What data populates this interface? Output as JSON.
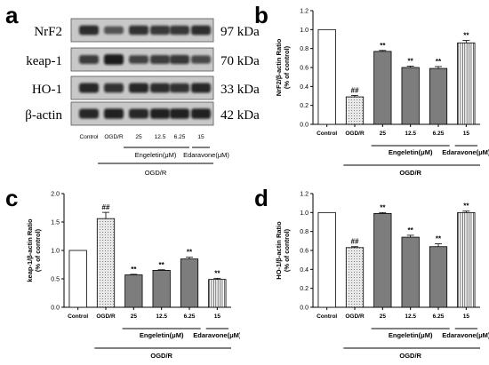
{
  "panel_letters": [
    "a",
    "b",
    "c",
    "d"
  ],
  "blot": {
    "proteins": [
      {
        "name": "NrF2",
        "size": "97 kDa"
      },
      {
        "name": "keap-1",
        "size": "70 kDa"
      },
      {
        "name": "HO-1",
        "size": "33 kDa"
      },
      {
        "name": "β-actin",
        "size": "42 kDa"
      }
    ],
    "lanes": [
      "Control",
      "OGD/R",
      "25",
      "12.5",
      "6.25",
      "15"
    ],
    "group_labels": [
      "Engeletin(μM)",
      "Edaravone(μM)"
    ],
    "condition_label": "OGD/R",
    "band_intensity": [
      [
        0.8,
        0.45,
        0.75,
        0.7,
        0.7,
        0.78
      ],
      [
        0.65,
        0.95,
        0.6,
        0.65,
        0.7,
        0.55
      ],
      [
        0.85,
        0.75,
        0.85,
        0.8,
        0.75,
        0.85
      ],
      [
        0.85,
        0.9,
        0.85,
        0.9,
        0.9,
        0.9
      ]
    ]
  },
  "chart_data": [
    {
      "type": "bar",
      "panel": "b",
      "categories": [
        "Control",
        "OGD/R",
        "25",
        "12.5",
        "6.25",
        "15"
      ],
      "values": [
        1.0,
        0.29,
        0.77,
        0.6,
        0.59,
        0.86
      ],
      "errors": [
        0,
        0.015,
        0.01,
        0.015,
        0.02,
        0.025
      ],
      "annotations": [
        "",
        "##",
        "**",
        "**",
        "**",
        "**"
      ],
      "ylabel": "NrF2/β-actin Ratio\n(% of control)",
      "ylim": [
        0.0,
        1.2
      ],
      "yticks": [
        "0.0",
        "0.2",
        "0.4",
        "0.6",
        "0.8",
        "1.0",
        "1.2"
      ],
      "group_labels": [
        "Engeletin(μM)",
        "Edaravone(μM)"
      ],
      "condition_label": "OGD/R"
    },
    {
      "type": "bar",
      "panel": "c",
      "categories": [
        "Control",
        "OGD/R",
        "25",
        "12.5",
        "6.25",
        "15"
      ],
      "values": [
        1.0,
        1.56,
        0.57,
        0.65,
        0.85,
        0.49
      ],
      "errors": [
        0,
        0.11,
        0.01,
        0.01,
        0.03,
        0.02
      ],
      "annotations": [
        "",
        "##",
        "**",
        "**",
        "**",
        "**"
      ],
      "ylabel": "keap-1/β-actin Ratio\n(% of control)",
      "ylim": [
        0.0,
        2.0
      ],
      "yticks": [
        "0.0",
        "0.5",
        "1.0",
        "1.5",
        "2.0"
      ],
      "group_labels": [
        "Engeletin(μM)",
        "Edaravone(μM)"
      ],
      "condition_label": "OGD/R"
    },
    {
      "type": "bar",
      "panel": "d",
      "categories": [
        "Control",
        "OGD/R",
        "25",
        "12.5",
        "6.25",
        "15"
      ],
      "values": [
        1.0,
        0.63,
        0.99,
        0.74,
        0.64,
        1.0
      ],
      "errors": [
        0,
        0.01,
        0.01,
        0.02,
        0.03,
        0.015
      ],
      "annotations": [
        "",
        "##",
        "**",
        "**",
        "**",
        "**"
      ],
      "ylabel": "HO-1/β-actin Ratio\n(% of control)",
      "ylim": [
        0.0,
        1.2
      ],
      "yticks": [
        "0.0",
        "0.2",
        "0.4",
        "0.6",
        "0.8",
        "1.0",
        "1.2"
      ],
      "group_labels": [
        "Engeletin(μM)",
        "Edaravone(μM)"
      ],
      "condition_label": "OGD/R"
    }
  ],
  "colors": {
    "control": "#ffffff",
    "ogdr": "#e9e9e9",
    "engeletin": "#7d7d7d",
    "edaravone": "#ffffff",
    "band": "#111111",
    "membrane": "#c8c8c8"
  }
}
